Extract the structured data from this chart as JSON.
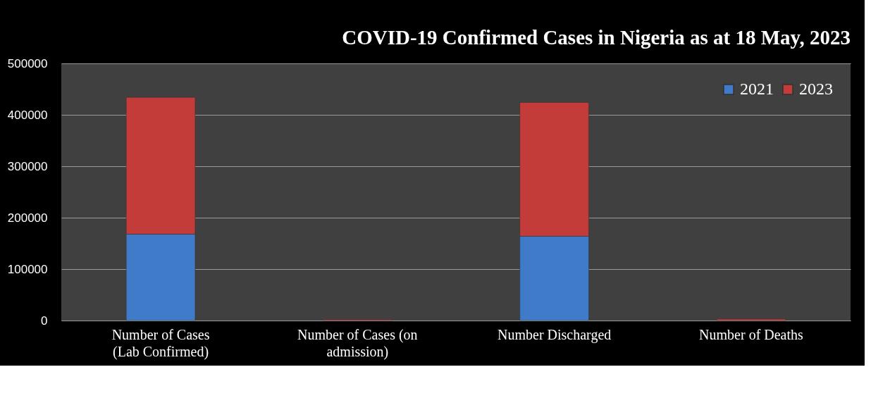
{
  "chart_data": {
    "type": "bar",
    "title": "COVID-19 Confirmed Cases in Nigeria as at 18 May, 2023",
    "categories": [
      "Number of Cases (Lab Confirmed)",
      "Number of Cases (on admission)",
      "Number Discharged",
      "Number of Deaths"
    ],
    "stacked": true,
    "series": [
      {
        "name": "2021",
        "color": "#3f7bc8",
        "values": [
          168000,
          null,
          164000,
          null
        ]
      },
      {
        "name": "2023",
        "color": "#c43c3a",
        "values": [
          266000,
          2000,
          260000,
          3000
        ]
      }
    ],
    "ylim": [
      0,
      500000
    ],
    "yticks": [
      0,
      100000,
      200000,
      300000,
      400000,
      500000
    ],
    "grid": "y",
    "legend": "top right"
  }
}
